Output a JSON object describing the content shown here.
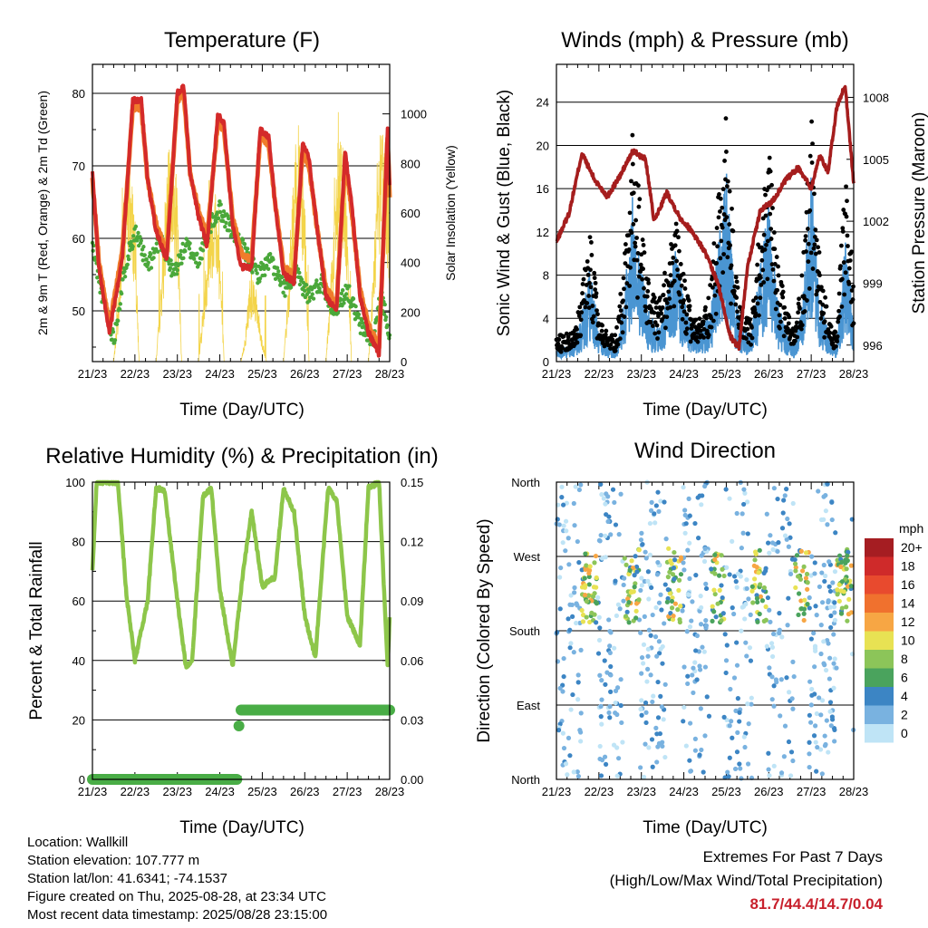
{
  "chart_data": [
    {
      "type": "line",
      "title": "Temperature (F)",
      "xlabel": "Time (Day/UTC)",
      "ylabel": "2m & 9m T (Red, Orange) & 2m Td (Green)",
      "y2label": "Solar Insolation (Yellow)",
      "x_ticks": [
        "21/23",
        "22/23",
        "23/23",
        "24/23",
        "25/23",
        "26/23",
        "27/23",
        "28/23"
      ],
      "ylim": [
        43,
        84
      ],
      "y_ticks": [
        50,
        60,
        70,
        80
      ],
      "y2lim": [
        0,
        1200
      ],
      "y2_ticks": [
        0,
        200,
        400,
        600,
        800,
        1000
      ],
      "grid": true,
      "series": [
        {
          "name": "2m T",
          "color": "#d42a2a",
          "axis": "left",
          "x": [
            0,
            0.15,
            0.4,
            0.7,
            0.95,
            1.15,
            1.3,
            1.5,
            1.75,
            2.0,
            2.15,
            2.3,
            2.5,
            2.7,
            2.95,
            3.1,
            3.3,
            3.5,
            3.75,
            3.95,
            4.15,
            4.3,
            4.5,
            4.75,
            4.95,
            5.1,
            5.3,
            5.5,
            5.75,
            5.95,
            6.1,
            6.3,
            6.5,
            6.75,
            6.95,
            7.0
          ],
          "values": [
            69,
            56,
            47,
            57,
            79,
            79,
            68,
            61,
            57,
            80,
            81,
            69,
            63,
            59,
            77,
            76,
            62,
            56,
            56,
            75,
            74,
            65,
            55,
            54,
            73,
            71,
            61,
            52,
            50,
            72,
            65,
            52,
            47,
            44,
            75,
            67
          ]
        },
        {
          "name": "9m T",
          "color": "#f07c2b",
          "axis": "left",
          "x": [
            0,
            0.15,
            0.4,
            0.7,
            0.95,
            1.15,
            1.3,
            1.5,
            1.75,
            2.0,
            2.15,
            2.3,
            2.5,
            2.7,
            2.95,
            3.1,
            3.3,
            3.5,
            3.75,
            3.95,
            4.15,
            4.3,
            4.5,
            4.75,
            4.95,
            5.1,
            5.3,
            5.5,
            5.75,
            5.95,
            6.1,
            6.3,
            6.5,
            6.75,
            6.95,
            7.0
          ],
          "values": [
            68,
            57,
            48,
            58,
            78,
            78,
            68,
            62,
            58,
            79,
            80,
            69,
            64,
            60,
            76,
            75,
            63,
            58,
            57,
            74,
            73,
            65,
            56,
            55,
            72,
            70,
            61,
            53,
            51,
            71,
            64,
            53,
            48,
            45,
            74,
            66
          ]
        },
        {
          "name": "2m Td",
          "color": "#4aa83a",
          "axis": "left",
          "x": [
            0,
            0.2,
            0.5,
            0.8,
            1.0,
            1.3,
            1.6,
            1.9,
            2.2,
            2.5,
            2.8,
            3.0,
            3.3,
            3.6,
            3.9,
            4.2,
            4.5,
            4.8,
            5.1,
            5.4,
            5.7,
            6.0,
            6.3,
            6.6,
            6.8,
            7.0
          ],
          "values": [
            59,
            53,
            46,
            57,
            61,
            56,
            60,
            55,
            59,
            57,
            62,
            64,
            61,
            58,
            55,
            57,
            53,
            55,
            52,
            54,
            50,
            53,
            48,
            46,
            52,
            47
          ]
        },
        {
          "name": "Solar Insolation",
          "color": "#f3d44a",
          "axis": "right",
          "x": [
            0.5,
            0.6,
            0.7,
            0.8,
            0.9,
            1.0,
            1.1,
            1.5,
            1.6,
            1.7,
            1.8,
            1.9,
            2.0,
            2.1,
            2.5,
            2.6,
            2.7,
            2.8,
            2.9,
            3.0,
            3.1,
            3.5,
            3.6,
            3.7,
            3.8,
            3.9,
            4.0,
            4.1,
            4.5,
            4.6,
            4.7,
            4.8,
            4.9,
            5.0,
            5.1,
            5.5,
            5.6,
            5.7,
            5.8,
            5.9,
            6.0,
            6.1,
            6.5,
            6.6,
            6.7,
            6.8,
            6.9,
            7.0
          ],
          "values": [
            0,
            200,
            480,
            700,
            720,
            520,
            0,
            0,
            250,
            520,
            760,
            800,
            600,
            0,
            0,
            200,
            420,
            600,
            640,
            420,
            0,
            0,
            100,
            300,
            320,
            200,
            80,
            0,
            0,
            240,
            560,
            800,
            860,
            620,
            0,
            0,
            280,
            560,
            780,
            780,
            560,
            0,
            0,
            320,
            600,
            860,
            820,
            500
          ]
        }
      ]
    },
    {
      "type": "line",
      "title": "Winds (mph) & Pressure (mb)",
      "xlabel": "Time (Day/UTC)",
      "ylabel": "Sonic Wind & Gust (Blue, Black)",
      "y2label": "Station Pressure (Maroon)",
      "x_ticks": [
        "21/23",
        "22/23",
        "23/23",
        "24/23",
        "25/23",
        "26/23",
        "27/23",
        "28/23"
      ],
      "ylim": [
        0,
        27.5
      ],
      "y_ticks": [
        0,
        4,
        8,
        12,
        16,
        20,
        24
      ],
      "y2lim": [
        995.2,
        1009.6
      ],
      "y2_ticks": [
        996,
        999,
        1002,
        1005,
        1008
      ],
      "grid": true,
      "series": [
        {
          "name": "Sonic Wind",
          "color": "#4a95d2",
          "axis": "left",
          "x": [
            0,
            0.2,
            0.4,
            0.6,
            0.8,
            1.0,
            1.2,
            1.4,
            1.6,
            1.8,
            2.0,
            2.2,
            2.4,
            2.6,
            2.8,
            3.0,
            3.2,
            3.4,
            3.6,
            3.8,
            4.0,
            4.2,
            4.4,
            4.6,
            4.8,
            5.0,
            5.2,
            5.4,
            5.6,
            5.8,
            6.0,
            6.2,
            6.4,
            6.6,
            6.8,
            7.0
          ],
          "values": [
            1,
            1,
            1,
            3,
            6,
            2,
            1,
            1,
            4,
            11,
            6,
            3,
            2,
            4,
            7,
            4,
            2,
            2,
            3,
            7,
            12,
            4,
            2,
            2,
            6,
            10,
            4,
            2,
            1,
            4,
            12,
            4,
            2,
            1,
            8,
            3
          ]
        },
        {
          "name": "Gust",
          "color": "#000000",
          "axis": "left",
          "x": [
            0,
            0.2,
            0.4,
            0.6,
            0.8,
            1.0,
            1.2,
            1.4,
            1.6,
            1.8,
            2.0,
            2.2,
            2.4,
            2.6,
            2.8,
            3.0,
            3.2,
            3.4,
            3.6,
            3.8,
            4.0,
            4.2,
            4.4,
            4.6,
            4.8,
            5.0,
            5.2,
            5.4,
            5.6,
            5.8,
            6.0,
            6.2,
            6.4,
            6.6,
            6.8,
            7.0
          ],
          "values": [
            2,
            2,
            2,
            5,
            9,
            3,
            2,
            2,
            7,
            16,
            10,
            5,
            4,
            7,
            10,
            6,
            3,
            3,
            5,
            11,
            17,
            7,
            3,
            3,
            10,
            15,
            7,
            4,
            2,
            7,
            17,
            7,
            3,
            2,
            13,
            6
          ]
        },
        {
          "name": "Station Pressure",
          "color": "#a51d1d",
          "axis": "right",
          "x": [
            0,
            0.3,
            0.6,
            0.9,
            1.2,
            1.5,
            1.8,
            2.1,
            2.3,
            2.6,
            2.9,
            3.2,
            3.5,
            3.8,
            4.1,
            4.3,
            4.5,
            4.8,
            5.1,
            5.4,
            5.7,
            6.0,
            6.2,
            6.4,
            6.6,
            6.8,
            7.0
          ],
          "values": [
            1001.0,
            1002.4,
            1005.3,
            1004.0,
            1003.2,
            1004.2,
            1005.4,
            1005.0,
            1002.0,
            1003.4,
            1002.2,
            1001.5,
            1000.5,
            999.0,
            996.4,
            995.9,
            999.8,
            1002.5,
            1003.0,
            1004.0,
            1004.6,
            1003.6,
            1005.2,
            1004.4,
            1007.5,
            1008.6,
            1003.8
          ]
        }
      ]
    },
    {
      "type": "line",
      "title": "Relative Humidity (%) & Precipitation (in)",
      "xlabel": "Time (Day/UTC)",
      "ylabel": "Percent & Total Rainfall",
      "x_ticks": [
        "21/23",
        "22/23",
        "23/23",
        "24/23",
        "25/23",
        "26/23",
        "27/23",
        "28/23"
      ],
      "ylim": [
        0,
        100
      ],
      "y_ticks": [
        0,
        20,
        40,
        60,
        80,
        100
      ],
      "y2lim": [
        0,
        0.15
      ],
      "y2_ticks": [
        "0.00",
        "0.03",
        "0.06",
        "0.09",
        "0.12",
        "0.15"
      ],
      "grid": true,
      "series": [
        {
          "name": "Relative Humidity",
          "color": "#8dc64a",
          "axis": "left",
          "x": [
            0,
            0.1,
            0.35,
            0.6,
            0.8,
            1.0,
            1.3,
            1.5,
            1.7,
            2.0,
            2.2,
            2.35,
            2.6,
            2.8,
            3.0,
            3.3,
            3.55,
            3.75,
            4.0,
            4.3,
            4.5,
            4.75,
            5.0,
            5.25,
            5.55,
            5.75,
            6.0,
            6.3,
            6.5,
            6.75,
            6.95,
            7.0
          ],
          "values": [
            70,
            100,
            100,
            100,
            62,
            40,
            60,
            98,
            97,
            60,
            38,
            40,
            95,
            98,
            64,
            38,
            70,
            90,
            65,
            68,
            98,
            90,
            55,
            41,
            98,
            94,
            55,
            45,
            98,
            100,
            38,
            54
          ]
        },
        {
          "name": "Precipitation",
          "color": "#49ad46",
          "axis": "right",
          "x": [
            0,
            3.4,
            3.45,
            3.5,
            7.0
          ],
          "values": [
            0,
            0,
            0.027,
            0.035,
            0.035
          ]
        }
      ]
    },
    {
      "type": "scatter",
      "title": "Wind Direction",
      "xlabel": "Time (Day/UTC)",
      "ylabel": "Direction (Colored By Speed)",
      "x_ticks": [
        "21/23",
        "22/23",
        "23/23",
        "24/23",
        "25/23",
        "26/23",
        "27/23",
        "28/23"
      ],
      "y_ticks": [
        "North",
        "West",
        "South",
        "East",
        "North"
      ],
      "grid": true,
      "legend": "right",
      "colorbar": {
        "title": "mph",
        "labels": [
          "20+",
          "18",
          "16",
          "14",
          "12",
          "10",
          "8",
          "6",
          "4",
          "2",
          "0"
        ],
        "colors": [
          "#a51d22",
          "#cf2a2a",
          "#e84a2e",
          "#f0712e",
          "#f7a644",
          "#e8e253",
          "#8cc559",
          "#4aa35d",
          "#3c85c4",
          "#79b2e0",
          "#bfe4f6"
        ]
      }
    }
  ],
  "station_info": [
    "Location: Wallkill",
    "Station elevation: 107.777 m",
    "Station lat/lon: 41.6341; -74.1537",
    "Figure created on Thu, 2025-08-28, at 23:34 UTC",
    "Most recent data timestamp: 2025/08/28 23:15:00"
  ],
  "extremes": {
    "title": "Extremes For Past 7 Days",
    "subtitle": "(High/Low/Max Wind/Total Precipitation)",
    "values": "81.7/44.4/14.7/0.04"
  }
}
